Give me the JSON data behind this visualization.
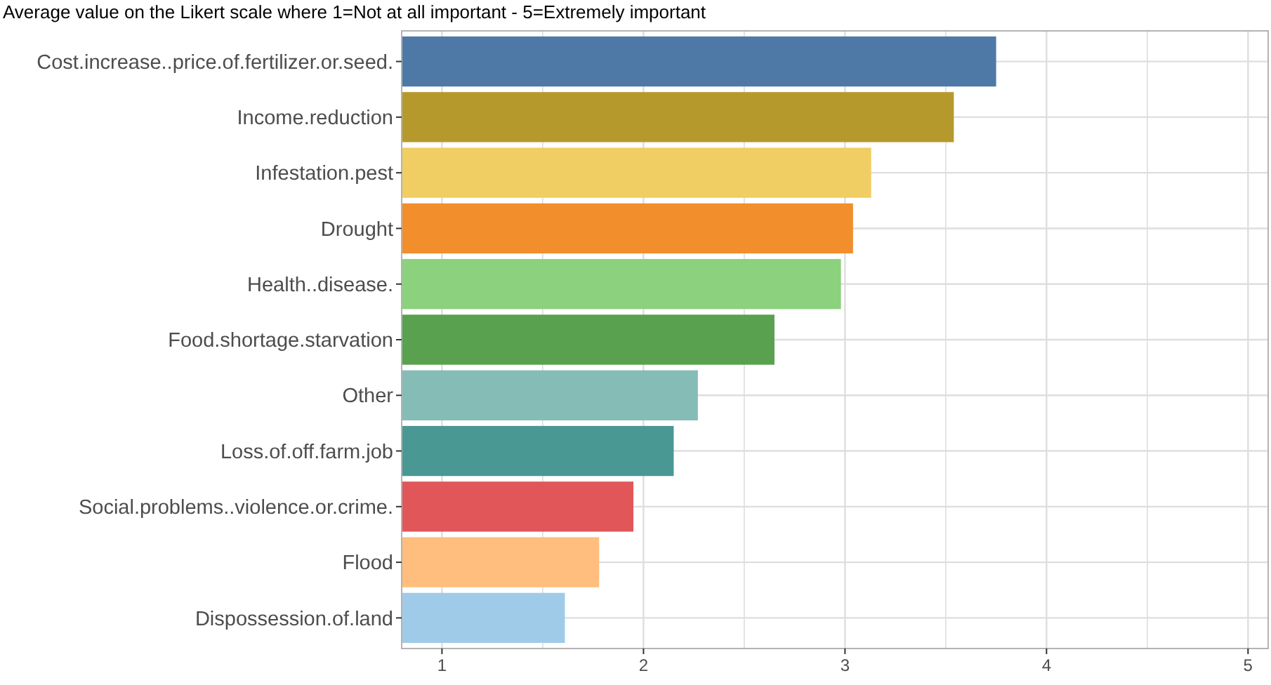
{
  "chart_data": {
    "type": "bar",
    "orientation": "horizontal",
    "title": "Average value on the Likert scale where 1=Not at all important - 5=Extremely important",
    "categories": [
      "Cost.increase..price.of.fertilizer.or.seed.",
      "Income.reduction",
      "Infestation.pest",
      "Drought",
      "Health..disease.",
      "Food.shortage.starvation",
      "Other",
      "Loss.of.off.farm.job",
      "Social.problems..violence.or.crime.",
      "Flood",
      "Dispossession.of.land"
    ],
    "values": [
      3.75,
      3.54,
      3.13,
      3.04,
      2.98,
      2.65,
      2.27,
      2.15,
      1.95,
      1.78,
      1.61
    ],
    "colors": [
      "#4e79a7",
      "#b6992d",
      "#f1ce63",
      "#f28e2b",
      "#8cd17d",
      "#59a14f",
      "#86bcb6",
      "#499894",
      "#e15759",
      "#ffbe7d",
      "#a0cbe8"
    ],
    "xlim": [
      0.8,
      5.1
    ],
    "xticks": [
      1,
      {
        "value": 1.5,
        "label": null
      },
      2,
      {
        "value": 2.5,
        "label": null
      },
      3,
      {
        "value": 3.5,
        "label": null
      },
      4,
      {
        "value": 4.5,
        "label": null
      },
      5
    ],
    "grid": true
  }
}
